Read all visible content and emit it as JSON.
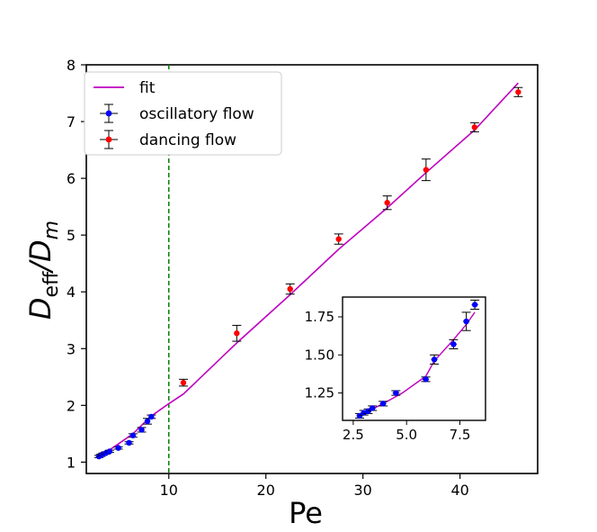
{
  "chart_data": {
    "type": "scatter",
    "xlabel": "Pe",
    "ylabel": {
      "base": "D",
      "sub1": "eff",
      "slash": "/",
      "base2": "D",
      "sub2": "m"
    },
    "xlim": [
      1.5,
      48
    ],
    "ylim": [
      0.8,
      8.0
    ],
    "xticks": [
      10,
      20,
      30,
      40
    ],
    "yticks": [
      1,
      2,
      3,
      4,
      5,
      6,
      7,
      8
    ],
    "xtick_labels": [
      "10",
      "20",
      "30",
      "40"
    ],
    "ytick_labels": [
      "1",
      "2",
      "3",
      "4",
      "5",
      "6",
      "7",
      "8"
    ],
    "threshold_line": {
      "x": 10,
      "color": "#008000",
      "style": "dashed"
    },
    "legend": {
      "position": "top-left",
      "entries": [
        {
          "label": "fit",
          "kind": "line",
          "color": "#bf00bf"
        },
        {
          "label": "oscillatory flow",
          "kind": "errorbar-point",
          "color": "#0000ff"
        },
        {
          "label": "dancing flow",
          "kind": "errorbar-point",
          "color": "#ff0000"
        }
      ]
    },
    "fit": {
      "name": "fit",
      "color": "#bf00bf",
      "x": [
        2.8,
        3.5,
        4.8,
        6.3,
        7.5,
        8.5,
        10.0,
        11.5,
        17.0,
        22.5,
        27.5,
        32.5,
        36.5,
        41.5,
        46.0
      ],
      "y": [
        1.1,
        1.17,
        1.32,
        1.5,
        1.7,
        1.85,
        2.03,
        2.2,
        3.1,
        3.95,
        4.75,
        5.48,
        6.1,
        6.85,
        7.68
      ]
    },
    "series": [
      {
        "name": "oscillatory flow",
        "color": "#0000ff",
        "x": [
          2.8,
          3.0,
          3.2,
          3.5,
          3.9,
          4.8,
          5.9,
          6.3,
          7.2,
          7.8,
          8.2
        ],
        "y": [
          1.1,
          1.12,
          1.14,
          1.16,
          1.19,
          1.25,
          1.34,
          1.47,
          1.57,
          1.72,
          1.8
        ],
        "yerr": [
          0.02,
          0.02,
          0.02,
          0.02,
          0.02,
          0.02,
          0.02,
          0.03,
          0.04,
          0.05,
          0.03
        ],
        "xerr": [
          0.2,
          0.2,
          0.2,
          0.2,
          0.2,
          0.2,
          0.2,
          0.2,
          0.2,
          0.2,
          0.2
        ]
      },
      {
        "name": "dancing flow",
        "color": "#ff0000",
        "x": [
          11.5,
          17.0,
          22.5,
          27.5,
          32.5,
          36.5,
          41.5,
          46.0
        ],
        "y": [
          2.4,
          3.27,
          4.05,
          4.93,
          5.57,
          6.15,
          6.9,
          7.52
        ],
        "yerr": [
          0.06,
          0.14,
          0.09,
          0.09,
          0.12,
          0.19,
          0.08,
          0.08
        ],
        "xerr": [
          0.2,
          0.2,
          0.2,
          0.2,
          0.2,
          0.2,
          0.2,
          0.2
        ]
      }
    ],
    "inset": {
      "xlim": [
        2.0,
        8.7
      ],
      "ylim": [
        1.07,
        1.88
      ],
      "xticks": [
        2.5,
        5.0,
        7.5
      ],
      "yticks": [
        1.25,
        1.5,
        1.75
      ],
      "xtick_labels": [
        "2.5",
        "5.0",
        "7.5"
      ],
      "ytick_labels": [
        "1.25",
        "1.50",
        "1.75"
      ],
      "fit": {
        "x": [
          2.8,
          3.2,
          3.9,
          4.8,
          5.9,
          6.3,
          7.2,
          7.8,
          8.2
        ],
        "y": [
          1.1,
          1.13,
          1.18,
          1.25,
          1.36,
          1.46,
          1.6,
          1.7,
          1.78
        ]
      },
      "points": {
        "x": [
          2.8,
          3.0,
          3.2,
          3.4,
          3.9,
          4.5,
          5.9,
          6.3,
          7.2,
          7.8,
          8.2
        ],
        "y": [
          1.1,
          1.12,
          1.13,
          1.15,
          1.18,
          1.25,
          1.34,
          1.47,
          1.57,
          1.72,
          1.83
        ],
        "yerr": [
          0.015,
          0.015,
          0.015,
          0.015,
          0.015,
          0.015,
          0.015,
          0.03,
          0.03,
          0.06,
          0.03
        ],
        "xerr": [
          0.15,
          0.15,
          0.15,
          0.15,
          0.15,
          0.15,
          0.15,
          0.15,
          0.15,
          0.15,
          0.15
        ]
      }
    }
  }
}
